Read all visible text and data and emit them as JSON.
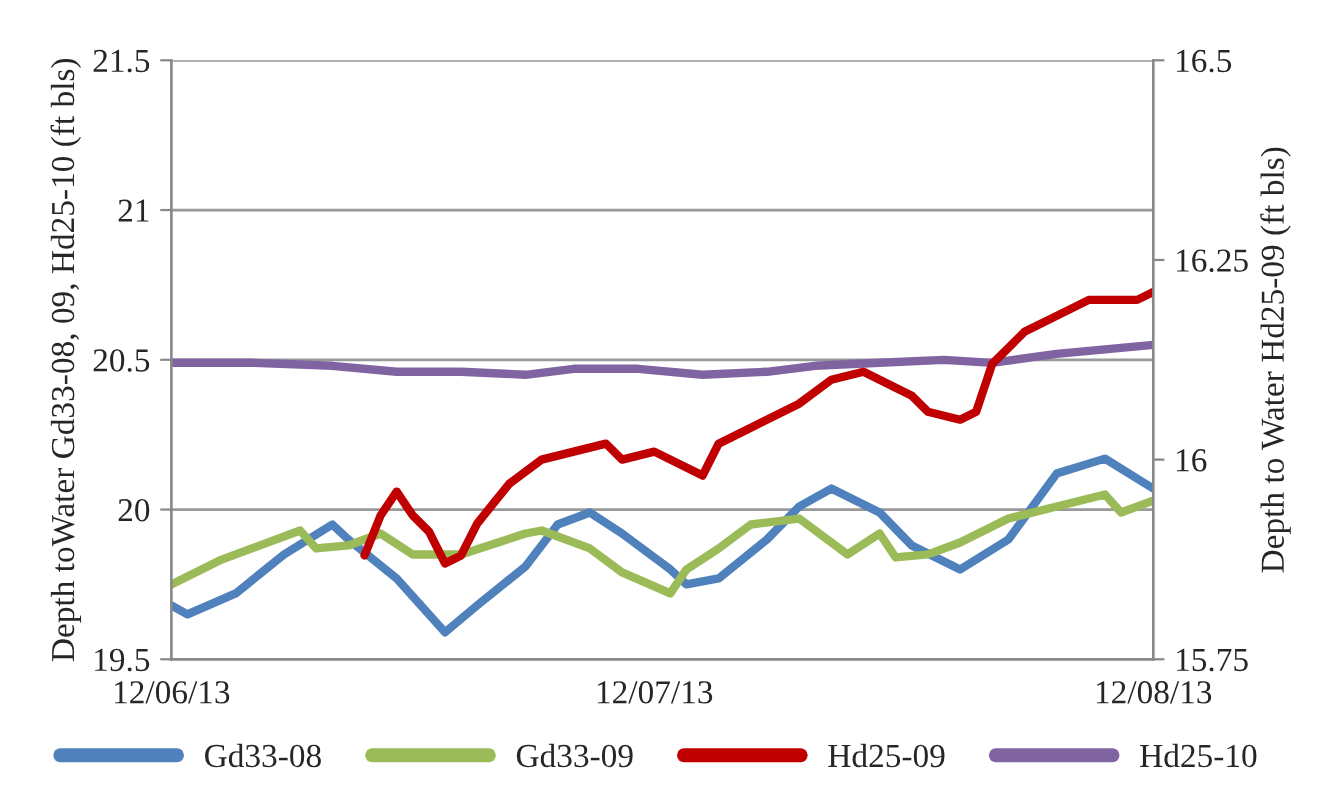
{
  "chart_data": {
    "type": "line",
    "ylabel": "Depth toWater Gd33-08, 09, Hd25-10 (ft bls)",
    "y2label": "Depth to Water Hd25-09 (ft bls)",
    "xlim": [
      "2013-06-12",
      "2013-08-12"
    ],
    "xticks": [
      {
        "value": "2013-06-12",
        "label": "12/06/13"
      },
      {
        "value": "2013-07-12",
        "label": "12/07/13"
      },
      {
        "value": "2013-08-12",
        "label": "12/08/13"
      }
    ],
    "ylim": [
      19.5,
      21.5
    ],
    "yticks": [
      19.5,
      20,
      20.5,
      21,
      21.5
    ],
    "y2lim": [
      15.75,
      16.5
    ],
    "y2ticks": [
      15.75,
      16,
      16.25,
      16.5
    ],
    "grid": "y",
    "legend": "bottom",
    "marker": "none",
    "line_style": "solid",
    "series": [
      {
        "name": "Gd33-08",
        "color": "#4f81bd",
        "x": [
          "2013-06-12",
          "2013-06-13",
          "2013-06-16",
          "2013-06-19",
          "2013-06-22",
          "2013-06-23",
          "2013-06-26",
          "2013-06-29",
          "2013-07-01",
          "2013-07-04",
          "2013-07-06",
          "2013-07-08",
          "2013-07-10",
          "2013-07-11",
          "2013-07-13",
          "2013-07-14",
          "2013-07-16",
          "2013-07-19",
          "2013-07-21",
          "2013-07-23",
          "2013-07-26",
          "2013-07-28",
          "2013-07-31",
          "2013-08-03",
          "2013-08-06",
          "2013-08-09",
          "2013-08-12"
        ],
        "values": [
          19.68,
          19.65,
          19.72,
          19.85,
          19.95,
          19.9,
          19.77,
          19.59,
          19.68,
          19.81,
          19.95,
          19.99,
          19.92,
          19.88,
          19.8,
          19.75,
          19.77,
          19.9,
          20.01,
          20.07,
          19.99,
          19.88,
          19.8,
          19.9,
          20.12,
          20.17,
          20.07
        ]
      },
      {
        "name": "Gd33-09",
        "color": "#9bbb59",
        "x": [
          "2013-06-12",
          "2013-06-15",
          "2013-06-17",
          "2013-06-20",
          "2013-06-21",
          "2013-06-23",
          "2013-06-25",
          "2013-06-27",
          "2013-06-30",
          "2013-07-04",
          "2013-07-05",
          "2013-07-08",
          "2013-07-10",
          "2013-07-13",
          "2013-07-14",
          "2013-07-16",
          "2013-07-18",
          "2013-07-21",
          "2013-07-24",
          "2013-07-26",
          "2013-07-27",
          "2013-07-29",
          "2013-07-31",
          "2013-08-03",
          "2013-08-06",
          "2013-08-09",
          "2013-08-10",
          "2013-08-12"
        ],
        "values": [
          19.75,
          19.83,
          19.87,
          19.93,
          19.87,
          19.88,
          19.92,
          19.85,
          19.85,
          19.92,
          19.93,
          19.87,
          19.79,
          19.72,
          19.8,
          19.87,
          19.95,
          19.97,
          19.85,
          19.92,
          19.84,
          19.85,
          19.89,
          19.97,
          20.01,
          20.05,
          19.99,
          20.03
        ]
      },
      {
        "name": "Hd25-09",
        "color": "#c00000",
        "axis": "y2",
        "x": [
          "2013-06-24",
          "2013-06-25",
          "2013-06-26",
          "2013-06-27",
          "2013-06-28",
          "2013-06-29",
          "2013-06-30",
          "2013-07-01",
          "2013-07-03",
          "2013-07-05",
          "2013-07-07",
          "2013-07-09",
          "2013-07-10",
          "2013-07-12",
          "2013-07-15",
          "2013-07-16",
          "2013-07-18",
          "2013-07-21",
          "2013-07-23",
          "2013-07-25",
          "2013-07-28",
          "2013-07-29",
          "2013-07-31",
          "2013-08-01",
          "2013-08-02",
          "2013-08-04",
          "2013-08-06",
          "2013-08-08",
          "2013-08-10",
          "2013-08-11",
          "2013-08-12"
        ],
        "values": [
          15.88,
          15.93,
          15.96,
          15.93,
          15.91,
          15.87,
          15.88,
          15.92,
          15.97,
          16.0,
          16.01,
          16.02,
          16.0,
          16.01,
          15.98,
          16.02,
          16.04,
          16.07,
          16.1,
          16.11,
          16.08,
          16.06,
          16.05,
          16.06,
          16.12,
          16.16,
          16.18,
          16.2,
          16.2,
          16.2,
          16.21
        ]
      },
      {
        "name": "Hd25-10",
        "color": "#8064a2",
        "x": [
          "2013-06-12",
          "2013-06-17",
          "2013-06-22",
          "2013-06-26",
          "2013-06-30",
          "2013-07-04",
          "2013-07-07",
          "2013-07-11",
          "2013-07-15",
          "2013-07-19",
          "2013-07-22",
          "2013-07-26",
          "2013-07-30",
          "2013-08-02",
          "2013-08-06",
          "2013-08-10",
          "2013-08-12"
        ],
        "values": [
          20.49,
          20.49,
          20.48,
          20.46,
          20.46,
          20.45,
          20.47,
          20.47,
          20.45,
          20.46,
          20.48,
          20.49,
          20.5,
          20.49,
          20.52,
          20.54,
          20.55
        ]
      }
    ]
  }
}
